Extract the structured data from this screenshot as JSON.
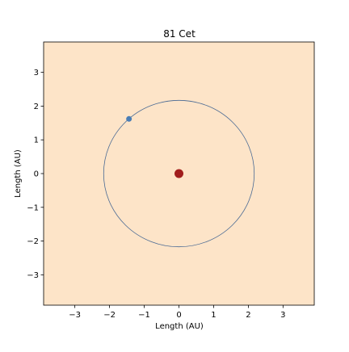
{
  "chart_data": {
    "type": "scatter",
    "title": "81 Cet",
    "xlabel": "Length (AU)",
    "ylabel": "Length (AU)",
    "xlim": [
      -3.9,
      3.9
    ],
    "ylim": [
      -3.9,
      3.9
    ],
    "xticks": [
      -3,
      -2,
      -1,
      0,
      1,
      2,
      3
    ],
    "yticks": [
      -3,
      -2,
      -1,
      0,
      1,
      2,
      3
    ],
    "xtick_labels": [
      "−3",
      "−2",
      "−1",
      "0",
      "1",
      "2",
      "3"
    ],
    "ytick_labels": [
      "−3",
      "−2",
      "−1",
      "0",
      "1",
      "2",
      "3"
    ],
    "grid": false,
    "legend": "none",
    "star": {
      "x": 0,
      "y": 0
    },
    "orbit": {
      "center_x": 0,
      "center_y": 0,
      "radius": 2.17
    },
    "planet": {
      "x": -1.44,
      "y": 1.62
    },
    "colors": {
      "axes_background": "#fde4c8",
      "star": "#a11d1d",
      "orbit": "#4a6a94",
      "planet": "#4a7db5"
    }
  }
}
